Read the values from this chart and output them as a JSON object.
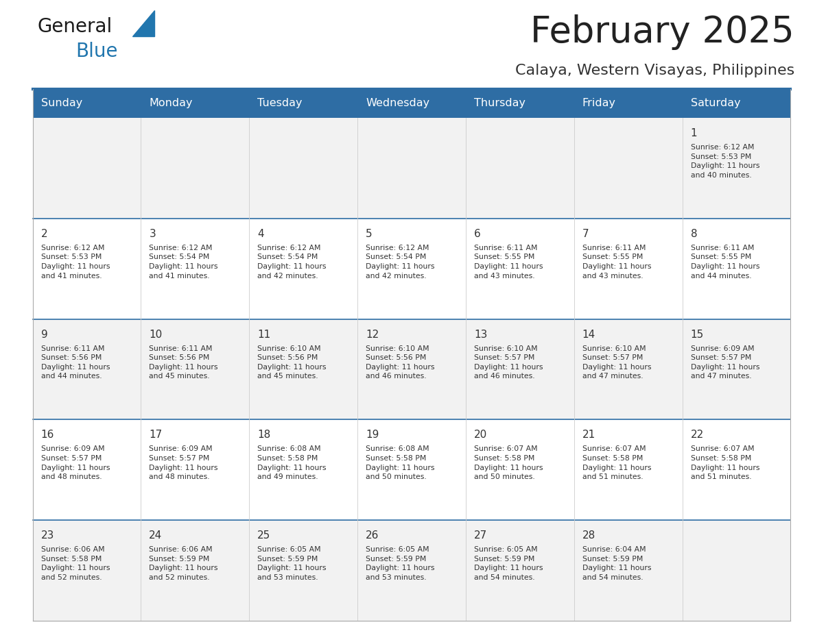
{
  "title": "February 2025",
  "subtitle": "Calaya, Western Visayas, Philippines",
  "header_bg": "#2E6DA4",
  "header_text_color": "#FFFFFF",
  "cell_bg_odd": "#F2F2F2",
  "cell_bg_even": "#FFFFFF",
  "day_headers": [
    "Sunday",
    "Monday",
    "Tuesday",
    "Wednesday",
    "Thursday",
    "Friday",
    "Saturday"
  ],
  "title_color": "#222222",
  "subtitle_color": "#333333",
  "day_number_color": "#333333",
  "cell_text_color": "#333333",
  "line_color": "#2E6DA4",
  "logo_general_color": "#1a1a1a",
  "logo_blue_color": "#2176AE",
  "weeks": [
    [
      {
        "day": null,
        "info": null
      },
      {
        "day": null,
        "info": null
      },
      {
        "day": null,
        "info": null
      },
      {
        "day": null,
        "info": null
      },
      {
        "day": null,
        "info": null
      },
      {
        "day": null,
        "info": null
      },
      {
        "day": 1,
        "info": "Sunrise: 6:12 AM\nSunset: 5:53 PM\nDaylight: 11 hours\nand 40 minutes."
      }
    ],
    [
      {
        "day": 2,
        "info": "Sunrise: 6:12 AM\nSunset: 5:53 PM\nDaylight: 11 hours\nand 41 minutes."
      },
      {
        "day": 3,
        "info": "Sunrise: 6:12 AM\nSunset: 5:54 PM\nDaylight: 11 hours\nand 41 minutes."
      },
      {
        "day": 4,
        "info": "Sunrise: 6:12 AM\nSunset: 5:54 PM\nDaylight: 11 hours\nand 42 minutes."
      },
      {
        "day": 5,
        "info": "Sunrise: 6:12 AM\nSunset: 5:54 PM\nDaylight: 11 hours\nand 42 minutes."
      },
      {
        "day": 6,
        "info": "Sunrise: 6:11 AM\nSunset: 5:55 PM\nDaylight: 11 hours\nand 43 minutes."
      },
      {
        "day": 7,
        "info": "Sunrise: 6:11 AM\nSunset: 5:55 PM\nDaylight: 11 hours\nand 43 minutes."
      },
      {
        "day": 8,
        "info": "Sunrise: 6:11 AM\nSunset: 5:55 PM\nDaylight: 11 hours\nand 44 minutes."
      }
    ],
    [
      {
        "day": 9,
        "info": "Sunrise: 6:11 AM\nSunset: 5:56 PM\nDaylight: 11 hours\nand 44 minutes."
      },
      {
        "day": 10,
        "info": "Sunrise: 6:11 AM\nSunset: 5:56 PM\nDaylight: 11 hours\nand 45 minutes."
      },
      {
        "day": 11,
        "info": "Sunrise: 6:10 AM\nSunset: 5:56 PM\nDaylight: 11 hours\nand 45 minutes."
      },
      {
        "day": 12,
        "info": "Sunrise: 6:10 AM\nSunset: 5:56 PM\nDaylight: 11 hours\nand 46 minutes."
      },
      {
        "day": 13,
        "info": "Sunrise: 6:10 AM\nSunset: 5:57 PM\nDaylight: 11 hours\nand 46 minutes."
      },
      {
        "day": 14,
        "info": "Sunrise: 6:10 AM\nSunset: 5:57 PM\nDaylight: 11 hours\nand 47 minutes."
      },
      {
        "day": 15,
        "info": "Sunrise: 6:09 AM\nSunset: 5:57 PM\nDaylight: 11 hours\nand 47 minutes."
      }
    ],
    [
      {
        "day": 16,
        "info": "Sunrise: 6:09 AM\nSunset: 5:57 PM\nDaylight: 11 hours\nand 48 minutes."
      },
      {
        "day": 17,
        "info": "Sunrise: 6:09 AM\nSunset: 5:57 PM\nDaylight: 11 hours\nand 48 minutes."
      },
      {
        "day": 18,
        "info": "Sunrise: 6:08 AM\nSunset: 5:58 PM\nDaylight: 11 hours\nand 49 minutes."
      },
      {
        "day": 19,
        "info": "Sunrise: 6:08 AM\nSunset: 5:58 PM\nDaylight: 11 hours\nand 50 minutes."
      },
      {
        "day": 20,
        "info": "Sunrise: 6:07 AM\nSunset: 5:58 PM\nDaylight: 11 hours\nand 50 minutes."
      },
      {
        "day": 21,
        "info": "Sunrise: 6:07 AM\nSunset: 5:58 PM\nDaylight: 11 hours\nand 51 minutes."
      },
      {
        "day": 22,
        "info": "Sunrise: 6:07 AM\nSunset: 5:58 PM\nDaylight: 11 hours\nand 51 minutes."
      }
    ],
    [
      {
        "day": 23,
        "info": "Sunrise: 6:06 AM\nSunset: 5:58 PM\nDaylight: 11 hours\nand 52 minutes."
      },
      {
        "day": 24,
        "info": "Sunrise: 6:06 AM\nSunset: 5:59 PM\nDaylight: 11 hours\nand 52 minutes."
      },
      {
        "day": 25,
        "info": "Sunrise: 6:05 AM\nSunset: 5:59 PM\nDaylight: 11 hours\nand 53 minutes."
      },
      {
        "day": 26,
        "info": "Sunrise: 6:05 AM\nSunset: 5:59 PM\nDaylight: 11 hours\nand 53 minutes."
      },
      {
        "day": 27,
        "info": "Sunrise: 6:05 AM\nSunset: 5:59 PM\nDaylight: 11 hours\nand 54 minutes."
      },
      {
        "day": 28,
        "info": "Sunrise: 6:04 AM\nSunset: 5:59 PM\nDaylight: 11 hours\nand 54 minutes."
      },
      {
        "day": null,
        "info": null
      }
    ]
  ]
}
